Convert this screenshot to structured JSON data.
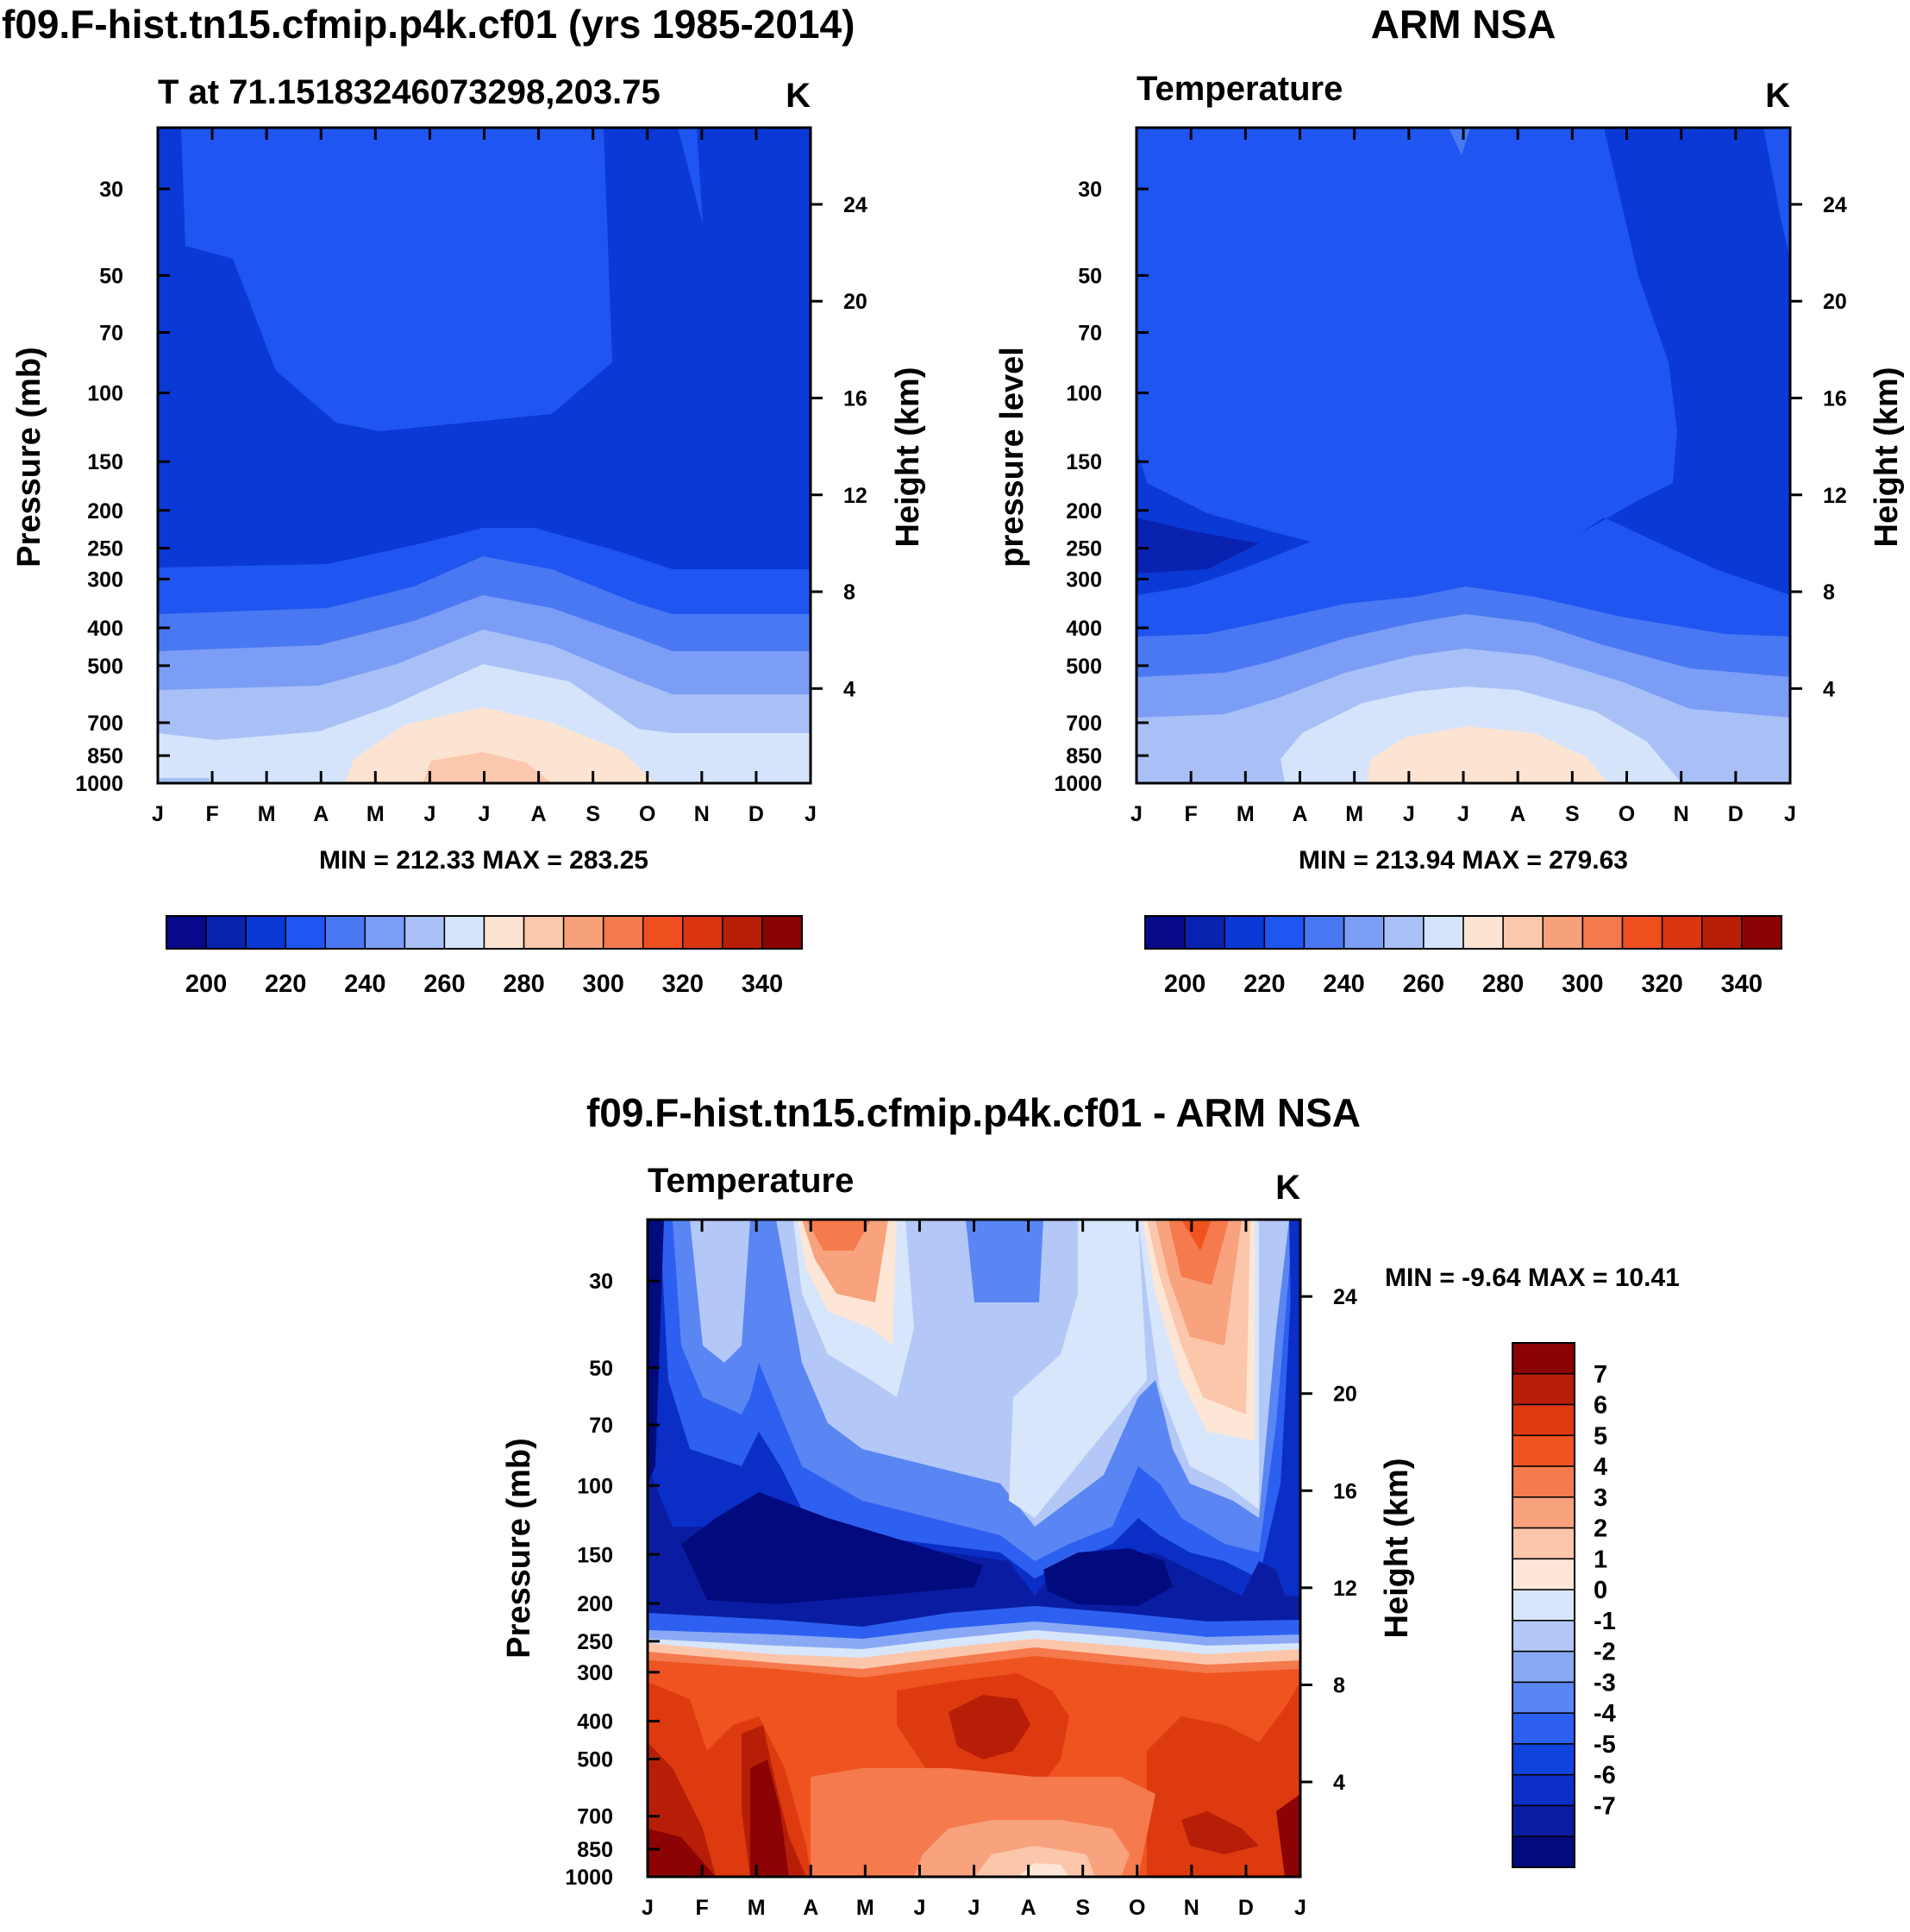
{
  "panel_model": {
    "title": "f09.F-hist.tn15.cfmip.p4k.cf01 (yrs 1985-2014)",
    "left_string": "T at 71.15183246073298,203.75",
    "right_string": "K",
    "ylabel": "Pressure (mb)",
    "ylabel_right": "Height (km)",
    "stats": "MIN = 212.33 MAX = 283.25"
  },
  "panel_obs": {
    "title": "ARM NSA",
    "left_string": "Temperature",
    "right_string": "K",
    "ylabel": "pressure level",
    "ylabel_right": "Height (km)",
    "stats": "MIN = 213.94 MAX = 279.63"
  },
  "panel_diff": {
    "title": "f09.F-hist.tn15.cfmip.p4k.cf01 - ARM NSA",
    "left_string": "Temperature",
    "right_string": "K",
    "ylabel": "Pressure (mb)",
    "ylabel_right": "Height (km)",
    "stats": "MIN =  -9.64 MAX =  10.41"
  },
  "chart_data": [
    {
      "type": "heatmap",
      "title": "f09.F-hist.tn15.cfmip.p4k.cf01 (yrs 1985-2014)",
      "variable": "T",
      "units": "K",
      "x_ticks": [
        "J",
        "F",
        "M",
        "A",
        "M",
        "J",
        "J",
        "A",
        "S",
        "O",
        "N",
        "D",
        "J"
      ],
      "y_ticks": [
        "30",
        "50",
        "70",
        "100",
        "150",
        "200",
        "250",
        "300",
        "400",
        "500",
        "700",
        "850",
        "1000"
      ],
      "y_right_ticks": [
        "24",
        "20",
        "16",
        "12",
        "8",
        "4"
      ],
      "contour_levels": [
        200,
        210,
        220,
        230,
        240,
        250,
        260,
        270,
        280,
        290,
        300,
        310,
        320,
        330,
        340
      ],
      "colorbar_labels": [
        "200",
        "220",
        "240",
        "260",
        "280",
        "300",
        "320",
        "340"
      ],
      "min": 212.33,
      "max": 283.25,
      "approx_profile": {
        "pressure_mb": [
          30,
          100,
          200,
          300,
          400,
          500,
          700,
          850,
          1000
        ],
        "jan_K": [
          218,
          214,
          214,
          222,
          232,
          242,
          254,
          262,
          266
        ],
        "jul_K": [
          224,
          222,
          216,
          232,
          244,
          254,
          266,
          276,
          282
        ]
      }
    },
    {
      "type": "heatmap",
      "title": "ARM NSA",
      "variable": "Temperature",
      "units": "K",
      "x_ticks": [
        "J",
        "F",
        "M",
        "A",
        "M",
        "J",
        "J",
        "A",
        "S",
        "O",
        "N",
        "D",
        "J"
      ],
      "y_ticks": [
        "30",
        "50",
        "70",
        "100",
        "150",
        "200",
        "250",
        "300",
        "400",
        "500",
        "700",
        "850",
        "1000"
      ],
      "y_right_ticks": [
        "24",
        "20",
        "16",
        "12",
        "8",
        "4"
      ],
      "contour_levels": [
        200,
        210,
        220,
        230,
        240,
        250,
        260,
        270,
        280,
        290,
        300,
        310,
        320,
        330,
        340
      ],
      "colorbar_labels": [
        "200",
        "220",
        "240",
        "260",
        "280",
        "300",
        "320",
        "340"
      ],
      "min": 213.94,
      "max": 279.63,
      "approx_profile": {
        "pressure_mb": [
          30,
          100,
          200,
          300,
          400,
          500,
          700,
          850,
          1000
        ],
        "jan_K": [
          218,
          216,
          214,
          216,
          228,
          240,
          250,
          258,
          262
        ],
        "jul_K": [
          226,
          222,
          222,
          228,
          244,
          256,
          266,
          274,
          280
        ]
      }
    },
    {
      "type": "heatmap",
      "title": "f09.F-hist.tn15.cfmip.p4k.cf01 - ARM NSA",
      "variable": "Temperature",
      "units": "K",
      "x_ticks": [
        "J",
        "F",
        "M",
        "A",
        "M",
        "J",
        "J",
        "A",
        "S",
        "O",
        "N",
        "D",
        "J"
      ],
      "y_ticks": [
        "30",
        "50",
        "70",
        "100",
        "150",
        "200",
        "250",
        "300",
        "400",
        "500",
        "700",
        "850",
        "1000"
      ],
      "y_right_ticks": [
        "24",
        "20",
        "16",
        "12",
        "8",
        "4"
      ],
      "contour_levels": [
        -7,
        -6,
        -5,
        -4,
        -3,
        -2,
        -1,
        0,
        1,
        2,
        3,
        4,
        5,
        6,
        7
      ],
      "colorbar_labels": [
        "7",
        "6",
        "5",
        "4",
        "3",
        "2",
        "1",
        "0",
        "-1",
        "-2",
        "-3",
        "-4",
        "-5",
        "-6",
        "-7"
      ],
      "min": -9.64,
      "max": 10.41,
      "approx_features": {
        "upper_200mb_cold_core_K": -8,
        "lower_troposphere_warm_K": 5,
        "surface_M_max_K": 8
      }
    }
  ],
  "colors": {
    "temp_ramp": [
      "#08088a",
      "#0a22b0",
      "#0b39d6",
      "#1f55f0",
      "#4a78f2",
      "#7b9df5",
      "#a9c0f7",
      "#d5e4fa",
      "#fde4d2",
      "#fbc7ad",
      "#f7a07c",
      "#f47a4e",
      "#ef4f1f",
      "#db3610",
      "#b81e06",
      "#8a0404"
    ],
    "diff_ramp": [
      "#020b7e",
      "#0a1da2",
      "#0b2ec7",
      "#0f43dc",
      "#2d60f0",
      "#5986f3",
      "#8aa9f5",
      "#b4c8f7",
      "#d8e6fb",
      "#fde6d6",
      "#fcc6ab",
      "#f8a27e",
      "#f57a4d",
      "#ef531f",
      "#de3a0f",
      "#b71e07",
      "#8b0303"
    ]
  }
}
